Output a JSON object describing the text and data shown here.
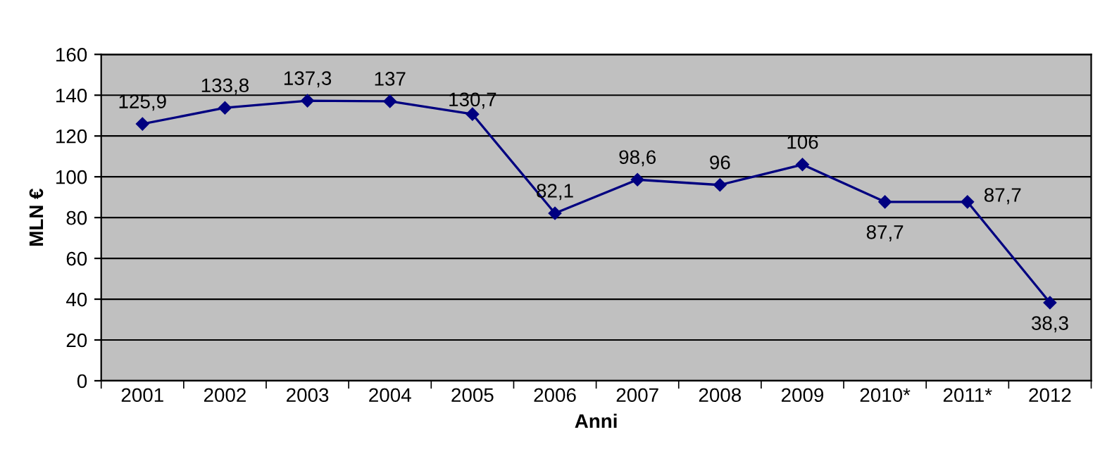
{
  "chart_data": {
    "type": "line",
    "xlabel": "Anni",
    "ylabel": "MLN €",
    "categories": [
      "2001",
      "2002",
      "2003",
      "2004",
      "2005",
      "2006",
      "2007",
      "2008",
      "2009",
      "2010*",
      "2011*",
      "2012"
    ],
    "series": [
      {
        "color": "#000080",
        "values": [
          125.9,
          133.8,
          137.3,
          137,
          130.7,
          82.1,
          98.6,
          96,
          106,
          87.7,
          87.7,
          38.3
        ],
        "value_labels": [
          "125,9",
          "133,8",
          "137,3",
          "137",
          "130,7",
          "82,1",
          "98,6",
          "96",
          "106",
          "87,7",
          "87,7",
          "38,3"
        ]
      }
    ],
    "ylim": [
      0,
      160
    ],
    "yticks": [
      0,
      20,
      40,
      60,
      80,
      100,
      120,
      140,
      160
    ],
    "grid": "y",
    "marker": "diamond",
    "line_style": "solid",
    "legend": false
  }
}
